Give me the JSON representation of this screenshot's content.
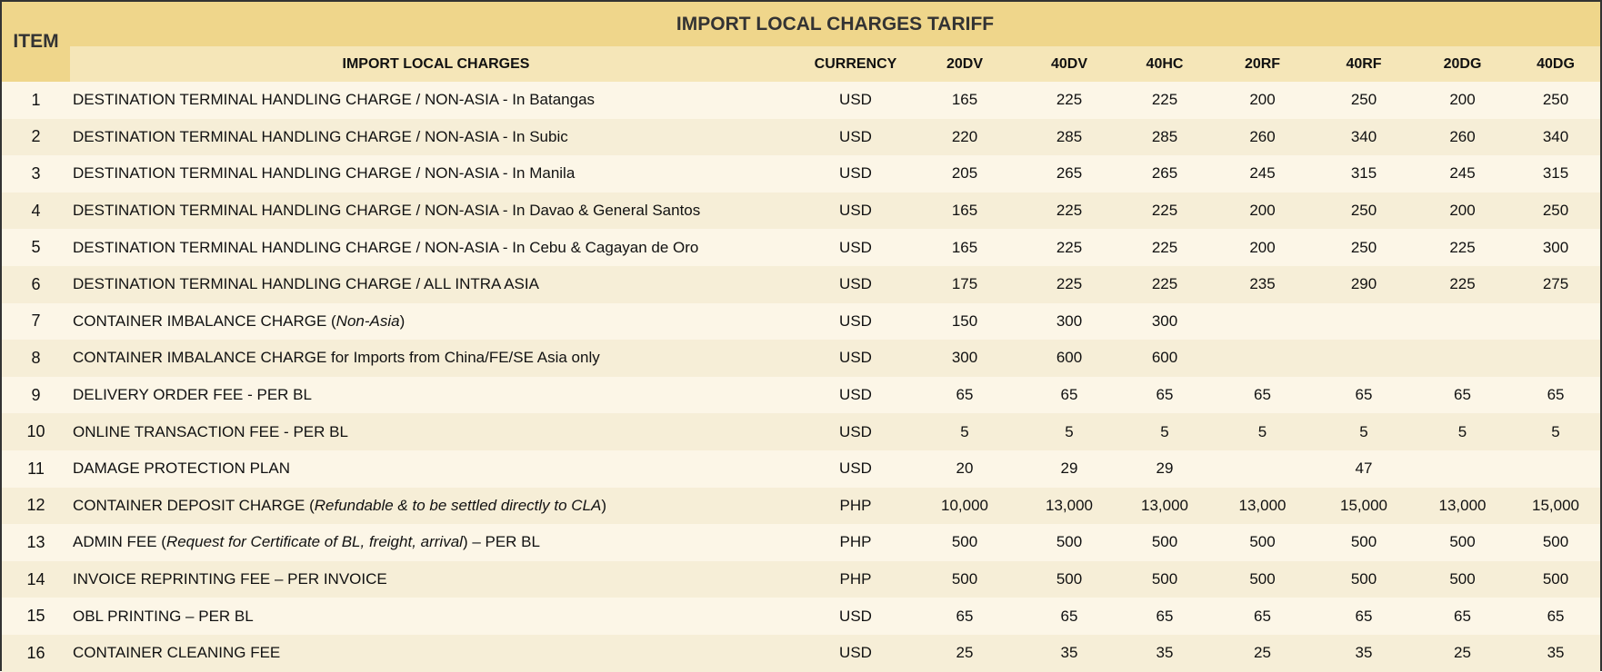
{
  "title": "IMPORT LOCAL CHARGES TARIFF",
  "headers": {
    "item": "ITEM",
    "charges": "IMPORT LOCAL CHARGES",
    "currency": "CURRENCY",
    "sizes": [
      "20DV",
      "40DV",
      "40HC",
      "20RF",
      "40RF",
      "20DG",
      "40DG"
    ]
  },
  "colors": {
    "title_bg": "#efd68b",
    "subheader_bg": "#f5e6b8",
    "row_light": "#fcf6e7",
    "row_dark": "#f6eed7"
  },
  "rows": [
    {
      "item": "1",
      "pre": "DESTINATION TERMINAL HANDLING CHARGE / NON-ASIA - In Batangas",
      "italic": "",
      "post": "",
      "currency": "USD",
      "values": [
        "165",
        "225",
        "225",
        "200",
        "250",
        "200",
        "250"
      ]
    },
    {
      "item": "2",
      "pre": "DESTINATION TERMINAL HANDLING CHARGE / NON-ASIA - In Subic",
      "italic": "",
      "post": "",
      "currency": "USD",
      "values": [
        "220",
        "285",
        "285",
        "260",
        "340",
        "260",
        "340"
      ]
    },
    {
      "item": "3",
      "pre": "DESTINATION TERMINAL HANDLING CHARGE / NON-ASIA - In Manila",
      "italic": "",
      "post": "",
      "currency": "USD",
      "values": [
        "205",
        "265",
        "265",
        "245",
        "315",
        "245",
        "315"
      ]
    },
    {
      "item": "4",
      "pre": "DESTINATION TERMINAL HANDLING CHARGE / NON-ASIA - In Davao & General Santos",
      "italic": "",
      "post": "",
      "currency": "USD",
      "values": [
        "165",
        "225",
        "225",
        "200",
        "250",
        "200",
        "250"
      ]
    },
    {
      "item": "5",
      "pre": "DESTINATION TERMINAL HANDLING CHARGE / NON-ASIA - In Cebu & Cagayan de Oro",
      "italic": "",
      "post": "",
      "currency": "USD",
      "values": [
        "165",
        "225",
        "225",
        "200",
        "250",
        "225",
        "300"
      ]
    },
    {
      "item": "6",
      "pre": "DESTINATION TERMINAL HANDLING CHARGE / ALL INTRA ASIA",
      "italic": "",
      "post": "",
      "currency": "USD",
      "values": [
        "175",
        "225",
        "225",
        "235",
        "290",
        "225",
        "275"
      ]
    },
    {
      "item": "7",
      "pre": "CONTAINER IMBALANCE CHARGE (",
      "italic": "Non-Asia",
      "post": ")",
      "currency": "USD",
      "values": [
        "150",
        "300",
        "300",
        "",
        "",
        "",
        ""
      ]
    },
    {
      "item": "8",
      "pre": "CONTAINER IMBALANCE CHARGE for Imports from China/FE/SE Asia only",
      "italic": "",
      "post": "",
      "currency": "USD",
      "values": [
        "300",
        "600",
        "600",
        "",
        "",
        "",
        ""
      ]
    },
    {
      "item": "9",
      "pre": "DELIVERY ORDER FEE - PER BL",
      "italic": "",
      "post": "",
      "currency": "USD",
      "values": [
        "65",
        "65",
        "65",
        "65",
        "65",
        "65",
        "65"
      ]
    },
    {
      "item": "10",
      "pre": "ONLINE TRANSACTION FEE - PER BL",
      "italic": "",
      "post": "",
      "currency": "USD",
      "values": [
        "5",
        "5",
        "5",
        "5",
        "5",
        "5",
        "5"
      ]
    },
    {
      "item": "11",
      "pre": "DAMAGE PROTECTION PLAN",
      "italic": "",
      "post": "",
      "currency": "USD",
      "values": [
        "20",
        "29",
        "29",
        "",
        "47",
        "",
        ""
      ]
    },
    {
      "item": "12",
      "pre": "CONTAINER DEPOSIT CHARGE (",
      "italic": "Refundable & to be settled directly to CLA",
      "post": ")",
      "currency": "PHP",
      "values": [
        "10,000",
        "13,000",
        "13,000",
        "13,000",
        "15,000",
        "13,000",
        "15,000"
      ]
    },
    {
      "item": "13",
      "pre": "ADMIN FEE (",
      "italic": "Request for Certificate of BL, freight, arrival",
      "post": ") – PER BL",
      "currency": "PHP",
      "values": [
        "500",
        "500",
        "500",
        "500",
        "500",
        "500",
        "500"
      ]
    },
    {
      "item": "14",
      "pre": "INVOICE REPRINTING FEE – PER INVOICE",
      "italic": "",
      "post": "",
      "currency": "PHP",
      "values": [
        "500",
        "500",
        "500",
        "500",
        "500",
        "500",
        "500"
      ]
    },
    {
      "item": "15",
      "pre": "OBL PRINTING – PER BL",
      "italic": "",
      "post": "",
      "currency": "USD",
      "values": [
        "65",
        "65",
        "65",
        "65",
        "65",
        "65",
        "65"
      ]
    },
    {
      "item": "16",
      "pre": "CONTAINER CLEANING FEE",
      "italic": "",
      "post": "",
      "currency": "USD",
      "values": [
        "25",
        "35",
        "35",
        "25",
        "35",
        "25",
        "35"
      ]
    }
  ]
}
